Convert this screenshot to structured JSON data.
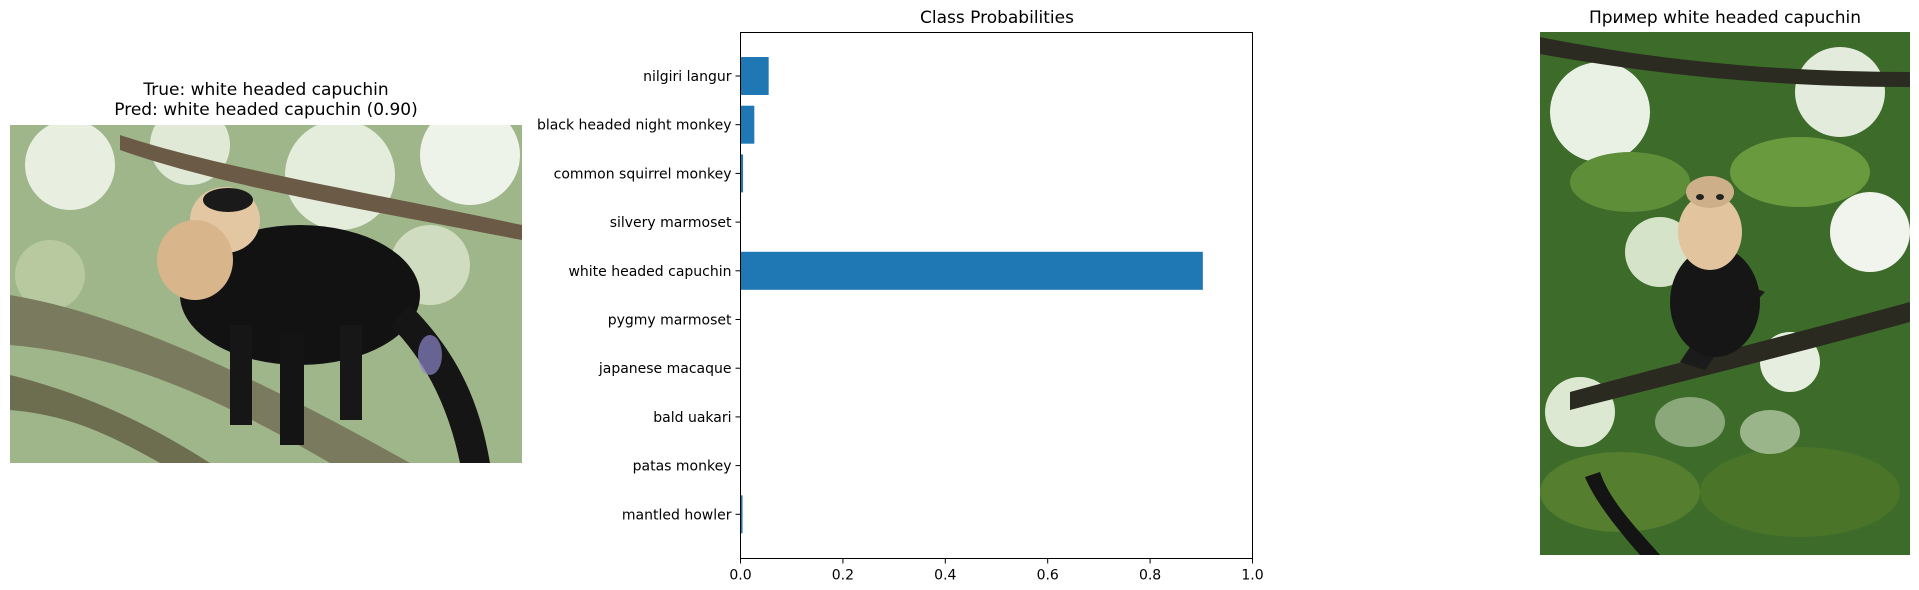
{
  "left_panel": {
    "title_line1": "True: white headed capuchin",
    "title_line2": "Pred: white headed capuchin (0.90)",
    "image_icon": "capuchin-photo-icon"
  },
  "right_panel": {
    "title": "Пример white headed capuchin",
    "image_icon": "capuchin-photo-icon"
  },
  "colors": {
    "bar": "#1f77b4",
    "axis": "#000000"
  },
  "chart_data": {
    "type": "bar",
    "orientation": "horizontal",
    "title": "Class Probabilities",
    "xlabel": "",
    "ylabel": "",
    "xlim": [
      0,
      1.0
    ],
    "xticks": [
      "0.0",
      "0.2",
      "0.4",
      "0.6",
      "0.8",
      "1.0"
    ],
    "categories": [
      "nilgiri langur",
      "black headed night monkey",
      "common squirrel monkey",
      "silvery marmoset",
      "white headed capuchin",
      "pygmy marmoset",
      "japanese macaque",
      "bald uakari",
      "patas monkey",
      "mantled howler"
    ],
    "values": [
      0.055,
      0.027,
      0.005,
      0.0,
      0.903,
      0.0,
      0.0,
      0.0,
      0.0,
      0.004
    ]
  }
}
